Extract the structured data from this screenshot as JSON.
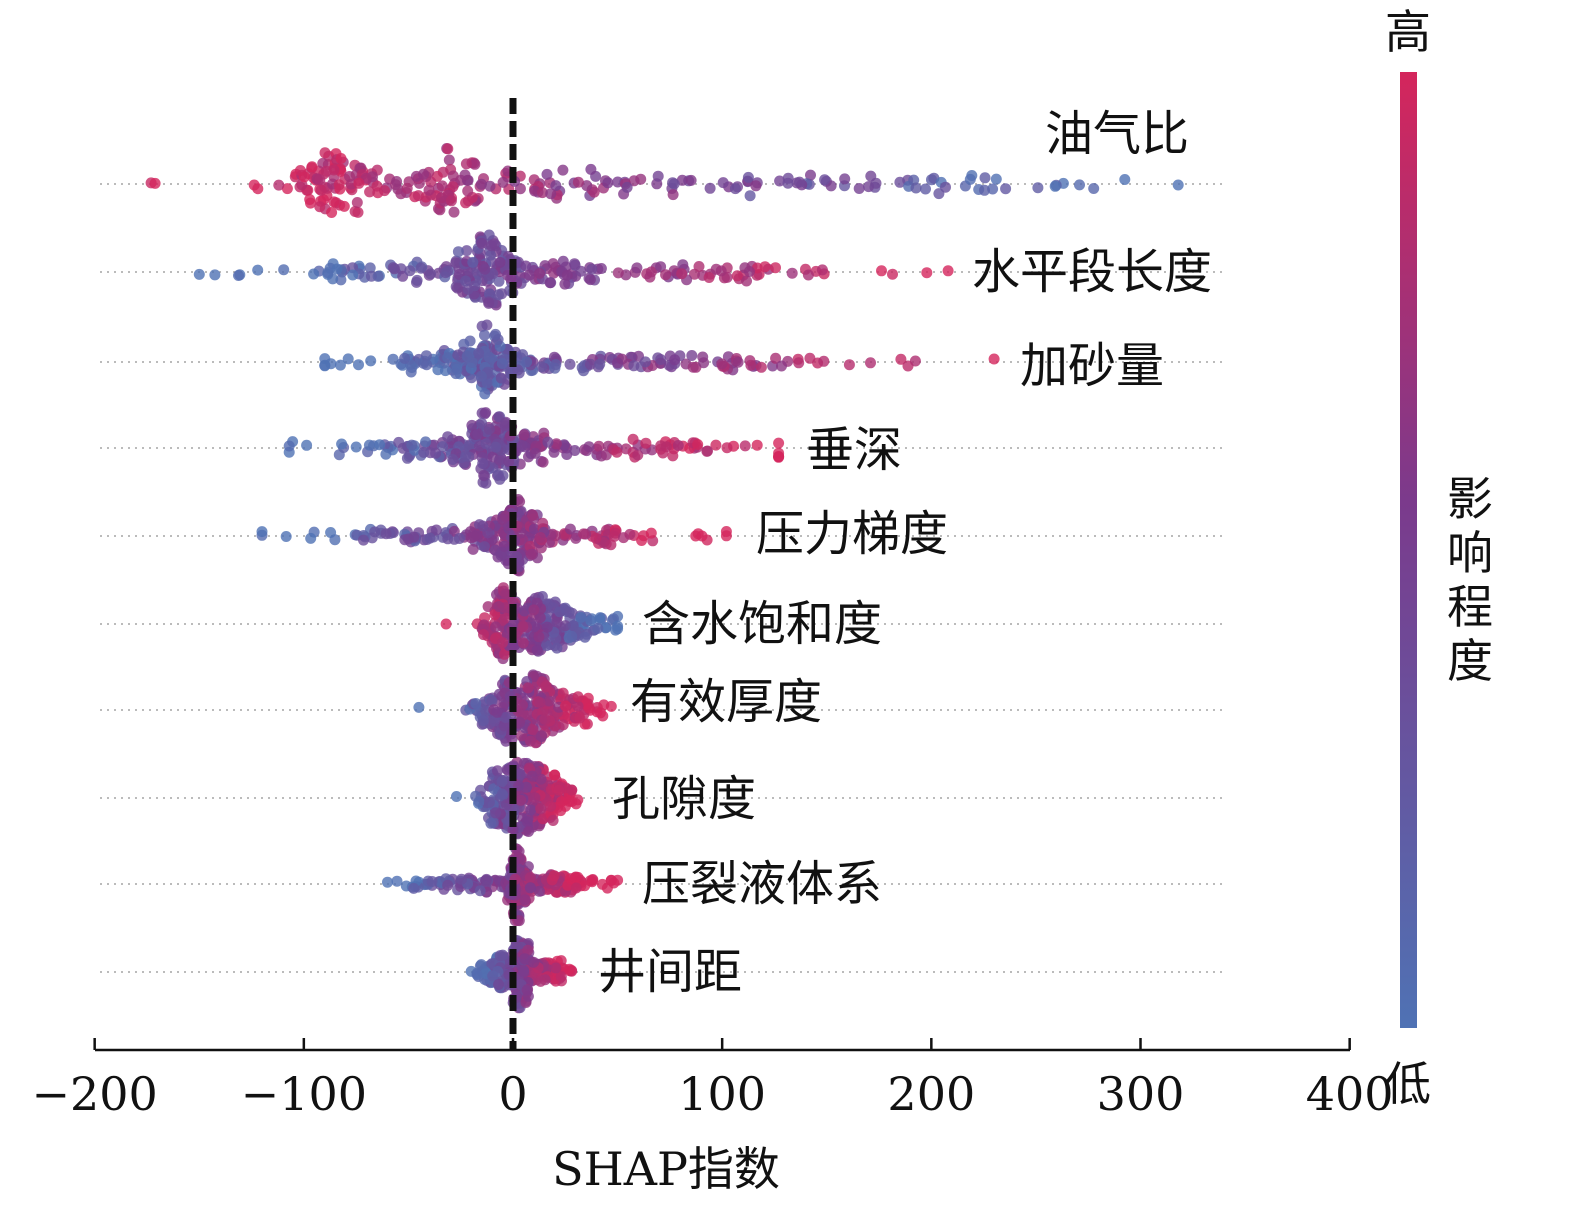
{
  "chart_data": {
    "type": "scatter",
    "subtype": "shap-beeswarm",
    "xlabel": "SHAP指数",
    "xlim": [
      -200,
      400
    ],
    "xticks": [
      -200,
      -100,
      0,
      100,
      200,
      300,
      400
    ],
    "xtick_labels": [
      "−200",
      "−100",
      "0",
      "100",
      "200",
      "300",
      "400"
    ],
    "reference_line": 0,
    "colorbar": {
      "title": "影响程度",
      "high_label": "高",
      "low_label": "低",
      "high_color": "#d4265c",
      "mid_color": "#7b3a8c",
      "low_color": "#4f72b4"
    },
    "features": [
      {
        "name": "油气比",
        "min": -173,
        "max": 318,
        "high_side": "negative",
        "peaks": [
          [
            -85,
            14,
            3
          ],
          [
            -35,
            10,
            1.5
          ],
          [
            0,
            60,
            2
          ],
          [
            160,
            80,
            2.5
          ]
        ]
      },
      {
        "name": "水平段长度",
        "min": -150,
        "max": 208,
        "high_side": "positive",
        "peaks": [
          [
            -12,
            10,
            3
          ],
          [
            -60,
            40,
            1.5
          ],
          [
            60,
            55,
            2.5
          ]
        ]
      },
      {
        "name": "加砂量",
        "min": -90,
        "max": 230,
        "high_side": "positive",
        "peaks": [
          [
            -12,
            10,
            3
          ],
          [
            -40,
            25,
            1.5
          ],
          [
            70,
            60,
            2.5
          ]
        ]
      },
      {
        "name": "垂深",
        "min": -107,
        "max": 127,
        "high_side": "positive",
        "peaks": [
          [
            -8,
            10,
            3
          ],
          [
            -40,
            30,
            1.5
          ],
          [
            50,
            35,
            1.5
          ]
        ]
      },
      {
        "name": "压力梯度",
        "min": -120,
        "max": 102,
        "high_side": "positive",
        "peaks": [
          [
            0,
            10,
            3
          ],
          [
            -40,
            30,
            1.2
          ],
          [
            40,
            30,
            1.2
          ]
        ]
      },
      {
        "name": "含水饱和度",
        "min": -32,
        "max": 50,
        "high_side": "negative",
        "peaks": [
          [
            -5,
            5,
            2
          ],
          [
            12,
            8,
            2
          ],
          [
            30,
            10,
            1
          ]
        ]
      },
      {
        "name": "有效厚度",
        "min": -45,
        "max": 47,
        "high_side": "positive",
        "peaks": [
          [
            -5,
            6,
            2
          ],
          [
            12,
            6,
            2
          ],
          [
            30,
            8,
            1
          ]
        ]
      },
      {
        "name": "孔隙度",
        "min": -27,
        "max": 31,
        "high_side": "positive",
        "peaks": [
          [
            -4,
            5,
            2
          ],
          [
            8,
            5,
            2
          ],
          [
            22,
            5,
            1
          ]
        ]
      },
      {
        "name": "压裂液体系",
        "min": -60,
        "max": 50,
        "high_side": "positive",
        "peaks": [
          [
            -20,
            20,
            1.5
          ],
          [
            2,
            3,
            2
          ],
          [
            25,
            12,
            1.5
          ]
        ]
      },
      {
        "name": "井间距",
        "min": -20,
        "max": 28,
        "high_side": "positive",
        "peaks": [
          [
            -6,
            6,
            1.5
          ],
          [
            3,
            3,
            2
          ],
          [
            15,
            6,
            1.2
          ]
        ]
      }
    ]
  }
}
